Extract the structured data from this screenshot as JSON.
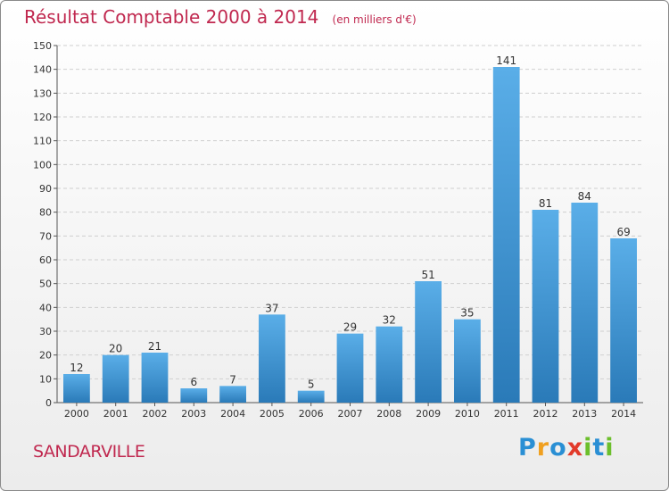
{
  "header": {
    "title": "Résultat Comptable 2000 à 2014",
    "subtitle": "(en milliers d'€)"
  },
  "footer": {
    "city": "SANDARVILLE",
    "logo": [
      "P",
      "r",
      "o",
      "x",
      "i",
      "t",
      "i"
    ]
  },
  "colors": {
    "bar_top": "#5aaee8",
    "bar_bottom": "#2a7ab8",
    "title": "#c0284f"
  },
  "chart_data": {
    "type": "bar",
    "categories": [
      "2000",
      "2001",
      "2002",
      "2003",
      "2004",
      "2005",
      "2006",
      "2007",
      "2008",
      "2009",
      "2010",
      "2011",
      "2012",
      "2013",
      "2014"
    ],
    "values": [
      12,
      20,
      21,
      6,
      7,
      37,
      5,
      29,
      32,
      51,
      35,
      141,
      81,
      84,
      69
    ],
    "title": "Résultat Comptable 2000 à 2014",
    "subtitle": "(en milliers d'€)",
    "ylim": [
      0,
      150
    ],
    "yticks": [
      0,
      10,
      20,
      30,
      40,
      50,
      60,
      70,
      80,
      90,
      100,
      110,
      120,
      130,
      140,
      150
    ],
    "grid": true,
    "legend": "none"
  }
}
